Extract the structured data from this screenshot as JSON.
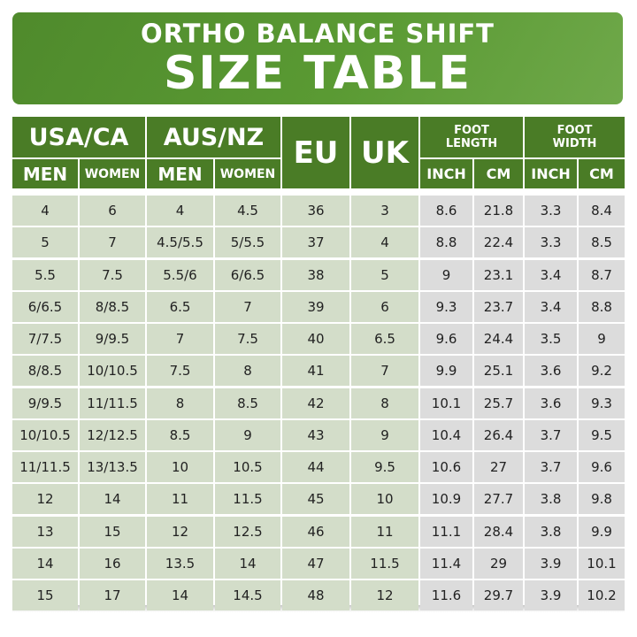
{
  "title": {
    "line1": "ORTHO BALANCE SHIFT",
    "line2": "SIZE TABLE"
  },
  "headers": {
    "usa_ca": "USA/CA",
    "aus_nz": "AUS/NZ",
    "eu": "EU",
    "uk": "UK",
    "foot_length": [
      "FOOT",
      "LENGTH"
    ],
    "foot_width": [
      "FOOT",
      "WIDTH"
    ],
    "men": "MEN",
    "women": "WOMEN",
    "inch": "INCH",
    "cm": "CM"
  },
  "rows": [
    [
      "4",
      "6",
      "4",
      "4.5",
      "36",
      "3",
      "8.6",
      "21.8",
      "3.3",
      "8.4"
    ],
    [
      "5",
      "7",
      "4.5/5.5",
      "5/5.5",
      "37",
      "4",
      "8.8",
      "22.4",
      "3.3",
      "8.5"
    ],
    [
      "5.5",
      "7.5",
      "5.5/6",
      "6/6.5",
      "38",
      "5",
      "9",
      "23.1",
      "3.4",
      "8.7"
    ],
    [
      "6/6.5",
      "8/8.5",
      "6.5",
      "7",
      "39",
      "6",
      "9.3",
      "23.7",
      "3.4",
      "8.8"
    ],
    [
      "7/7.5",
      "9/9.5",
      "7",
      "7.5",
      "40",
      "6.5",
      "9.6",
      "24.4",
      "3.5",
      "9"
    ],
    [
      "8/8.5",
      "10/10.5",
      "7.5",
      "8",
      "41",
      "7",
      "9.9",
      "25.1",
      "3.6",
      "9.2"
    ],
    [
      "9/9.5",
      "11/11.5",
      "8",
      "8.5",
      "42",
      "8",
      "10.1",
      "25.7",
      "3.6",
      "9.3"
    ],
    [
      "10/10.5",
      "12/12.5",
      "8.5",
      "9",
      "43",
      "9",
      "10.4",
      "26.4",
      "3.7",
      "9.5"
    ],
    [
      "11/11.5",
      "13/13.5",
      "10",
      "10.5",
      "44",
      "9.5",
      "10.6",
      "27",
      "3.7",
      "9.6"
    ],
    [
      "12",
      "14",
      "11",
      "11.5",
      "45",
      "10",
      "10.9",
      "27.7",
      "3.8",
      "9.8"
    ],
    [
      "13",
      "15",
      "12",
      "12.5",
      "46",
      "11",
      "11.1",
      "28.4",
      "3.8",
      "9.9"
    ],
    [
      "14",
      "16",
      "13.5",
      "14",
      "47",
      "11.5",
      "11.4",
      "29",
      "3.9",
      "10.1"
    ],
    [
      "15",
      "17",
      "14",
      "14.5",
      "48",
      "12",
      "11.6",
      "29.7",
      "3.9",
      "10.2"
    ]
  ],
  "colors": {
    "header_green": "#4a7c26",
    "cell_green": "#d3ddc9",
    "cell_gray": "#dcdcdc"
  }
}
